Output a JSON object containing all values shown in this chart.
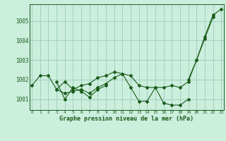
{
  "background_color": "#cceedd",
  "grid_color": "#99ccbb",
  "line_color_dark": "#1a5c1a",
  "xlabel": "Graphe pression niveau de la mer (hPa)",
  "ylabel_ticks": [
    1001,
    1002,
    1003,
    1004,
    1005
  ],
  "xlim": [
    -0.3,
    23.3
  ],
  "ylim": [
    1000.45,
    1005.85
  ],
  "x": [
    0,
    1,
    2,
    3,
    4,
    5,
    6,
    7,
    8,
    9,
    10,
    11,
    12,
    13,
    14,
    15,
    16,
    17,
    18,
    19,
    20,
    21,
    22,
    23
  ],
  "series1": [
    1001.7,
    1002.2,
    1002.2,
    1001.5,
    1001.9,
    1001.5,
    1001.7,
    1001.8,
    1002.1,
    1002.2,
    1002.4,
    1002.3,
    1002.2,
    1001.7,
    1001.6,
    1001.6,
    1001.6,
    1001.7,
    1001.6,
    1001.9,
    1003.0,
    1004.1,
    1005.2,
    null
  ],
  "series2": [
    null,
    null,
    null,
    1001.9,
    1001.0,
    1001.6,
    1001.4,
    1001.1,
    1001.5,
    1001.7,
    null,
    null,
    null,
    null,
    null,
    null,
    null,
    null,
    null,
    null,
    null,
    null,
    null,
    null
  ],
  "series3": [
    null,
    null,
    null,
    1001.5,
    1001.3,
    1001.4,
    1001.5,
    1001.3,
    1001.6,
    1001.8,
    1002.1,
    1002.3,
    1001.6,
    1000.9,
    1000.9,
    1001.6,
    1000.8,
    1000.7,
    1000.7,
    1001.0,
    null,
    null,
    null,
    null
  ],
  "series4": [
    null,
    null,
    null,
    null,
    null,
    null,
    null,
    null,
    null,
    null,
    null,
    null,
    null,
    null,
    null,
    null,
    null,
    null,
    null,
    1002.0,
    1003.0,
    1004.2,
    1005.3,
    1005.6
  ]
}
